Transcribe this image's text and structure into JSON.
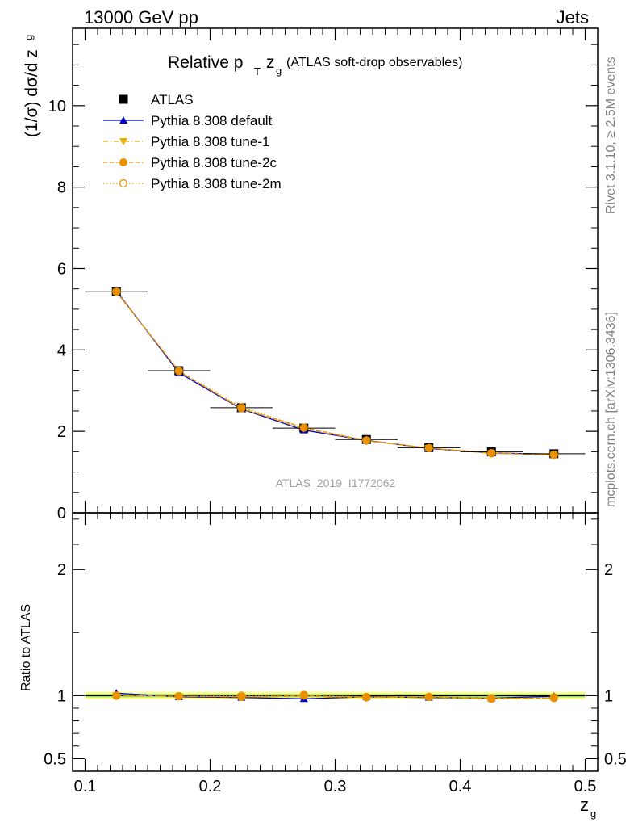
{
  "header": {
    "left": "13000 GeV pp",
    "right": "Jets",
    "title_main": "Relative p",
    "title_sub_T": "T",
    "title_z": "z",
    "title_sub_g": "g",
    "title_paren": "(ATLAS soft-drop observables)",
    "watermark": "ATLAS_2019_I1772062"
  },
  "side": {
    "rivet": "Rivet 3.1.10, ≥ 2.5M events",
    "mcplots": "mcplots.cern.ch [arXiv:1306.3436]"
  },
  "axes": {
    "ylabel_main": "(1/σ) dσ/d z",
    "ylabel_sub": "g",
    "ylabel_ratio": "Ratio to ATLAS",
    "xlabel": "z",
    "xlabel_sub": "g"
  },
  "legend": [
    {
      "label": "ATLAS",
      "color": "#000000",
      "marker": "square",
      "line": "none"
    },
    {
      "label": "Pythia 8.308 default",
      "color": "#0000cc",
      "marker": "triangle-up",
      "line": "solid"
    },
    {
      "label": "Pythia 8.308 tune-1",
      "color": "#e8b000",
      "marker": "triangle-down",
      "line": "dashdot"
    },
    {
      "label": "Pythia 8.308 tune-2c",
      "color": "#e89000",
      "marker": "circle",
      "line": "dashed"
    },
    {
      "label": "Pythia 8.308 tune-2m",
      "color": "#e89000",
      "marker": "circle-open",
      "line": "dotted"
    }
  ],
  "chart_data": {
    "type": "line",
    "x": [
      0.125,
      0.175,
      0.225,
      0.275,
      0.325,
      0.375,
      0.425,
      0.475
    ],
    "xlim": [
      0.09,
      0.51
    ],
    "xticks": [
      "0.1",
      "0.2",
      "0.3",
      "0.4",
      "0.5"
    ],
    "xtick_values": [
      0.1,
      0.2,
      0.3,
      0.4,
      0.5
    ],
    "main": {
      "ylim": [
        0,
        11.9
      ],
      "yticks": [
        "0",
        "2",
        "4",
        "6",
        "8",
        "10"
      ],
      "ytick_values": [
        0,
        2,
        4,
        6,
        8,
        10
      ],
      "series": [
        {
          "name": "ATLAS",
          "values": [
            5.43,
            3.49,
            2.58,
            2.08,
            1.8,
            1.6,
            1.5,
            1.45
          ]
        },
        {
          "name": "Pythia 8.308 default",
          "values": [
            5.45,
            3.44,
            2.55,
            2.03,
            1.78,
            1.58,
            1.47,
            1.44
          ]
        },
        {
          "name": "Pythia 8.308 tune-1",
          "values": [
            5.42,
            3.48,
            2.56,
            2.07,
            1.77,
            1.59,
            1.46,
            1.42
          ]
        },
        {
          "name": "Pythia 8.308 tune-2c",
          "values": [
            5.43,
            3.48,
            2.56,
            2.09,
            1.77,
            1.59,
            1.47,
            1.42
          ]
        },
        {
          "name": "Pythia 8.308 tune-2m",
          "values": [
            5.43,
            3.48,
            2.59,
            2.09,
            1.78,
            1.59,
            1.46,
            1.43
          ]
        }
      ]
    },
    "ratio": {
      "ylim": [
        0.4,
        2.45
      ],
      "yticks": [
        "0.5",
        "1",
        "2"
      ],
      "ytick_values": [
        0.5,
        1,
        2
      ],
      "series": [
        {
          "name": "Pythia 8.308 default",
          "values": [
            1.02,
            0.99,
            0.985,
            0.975,
            0.99,
            0.985,
            0.98,
            0.995
          ]
        },
        {
          "name": "Pythia 8.308 tune-1",
          "values": [
            1.0,
            0.995,
            0.99,
            0.995,
            0.985,
            0.99,
            0.975,
            0.98
          ]
        },
        {
          "name": "Pythia 8.308 tune-2c",
          "values": [
            1.0,
            0.995,
            0.99,
            1.0,
            0.985,
            0.99,
            0.98,
            0.98
          ]
        },
        {
          "name": "Pythia 8.308 tune-2m",
          "values": [
            1.0,
            0.995,
            1.0,
            1.005,
            0.99,
            0.99,
            0.975,
            0.985
          ]
        }
      ]
    }
  }
}
